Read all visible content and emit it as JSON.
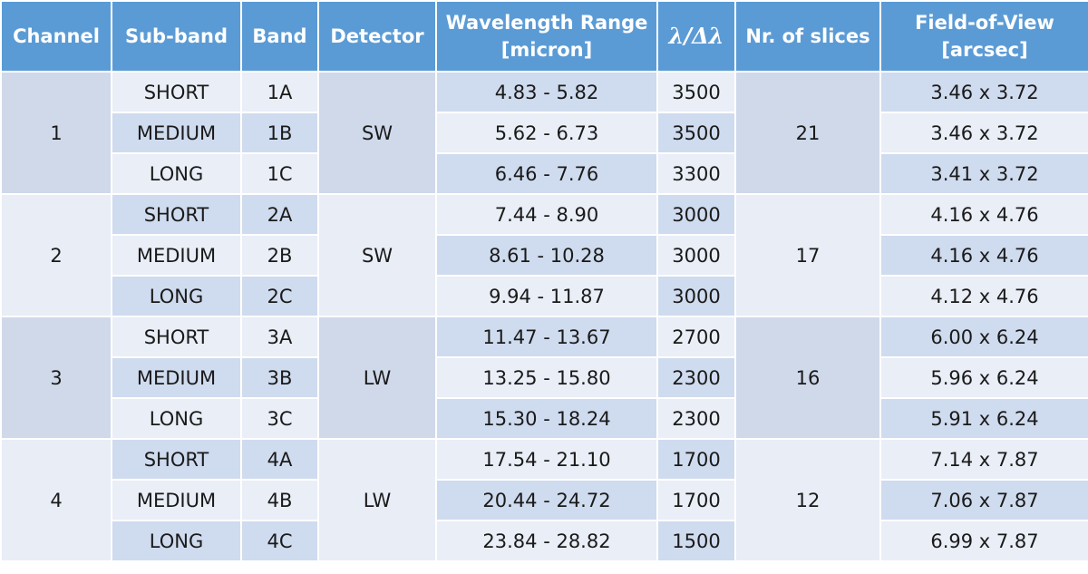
{
  "table": {
    "header": {
      "channel": "Channel",
      "sub_band": "Sub-band",
      "band": "Band",
      "detector": "Detector",
      "wavelength": [
        "Wavelength Range",
        "[micron]"
      ],
      "resolution": "λ/Δλ",
      "slices": "Nr. of slices",
      "fov": [
        "Field-of-View",
        "[arcsec]"
      ]
    },
    "groups": [
      {
        "channel": "1",
        "detector": "SW",
        "slices": "21",
        "rows": [
          {
            "sub_band": "SHORT",
            "band": "1A",
            "wavelength": "4.83 - 5.82",
            "resolution": "3500",
            "fov": "3.46 x 3.72"
          },
          {
            "sub_band": "MEDIUM",
            "band": "1B",
            "wavelength": "5.62 - 6.73",
            "resolution": "3500",
            "fov": "3.46 x 3.72"
          },
          {
            "sub_band": "LONG",
            "band": "1C",
            "wavelength": "6.46 - 7.76",
            "resolution": "3300",
            "fov": "3.41 x 3.72"
          }
        ]
      },
      {
        "channel": "2",
        "detector": "SW",
        "slices": "17",
        "rows": [
          {
            "sub_band": "SHORT",
            "band": "2A",
            "wavelength": "7.44 - 8.90",
            "resolution": "3000",
            "fov": "4.16 x 4.76"
          },
          {
            "sub_band": "MEDIUM",
            "band": "2B",
            "wavelength": "8.61 - 10.28",
            "resolution": "3000",
            "fov": "4.16 x 4.76"
          },
          {
            "sub_band": "LONG",
            "band": "2C",
            "wavelength": "9.94 - 11.87",
            "resolution": "3000",
            "fov": "4.12 x 4.76"
          }
        ]
      },
      {
        "channel": "3",
        "detector": "LW",
        "slices": "16",
        "rows": [
          {
            "sub_band": "SHORT",
            "band": "3A",
            "wavelength": "11.47 - 13.67",
            "resolution": "2700",
            "fov": "6.00 x 6.24"
          },
          {
            "sub_band": "MEDIUM",
            "band": "3B",
            "wavelength": "13.25 - 15.80",
            "resolution": "2300",
            "fov": "5.96 x 6.24"
          },
          {
            "sub_band": "LONG",
            "band": "3C",
            "wavelength": "15.30 - 18.24",
            "resolution": "2300",
            "fov": "5.91 x 6.24"
          }
        ]
      },
      {
        "channel": "4",
        "detector": "LW",
        "slices": "12",
        "rows": [
          {
            "sub_band": "SHORT",
            "band": "4A",
            "wavelength": "17.54 - 21.10",
            "resolution": "1700",
            "fov": "7.14 x 7.87"
          },
          {
            "sub_band": "MEDIUM",
            "band": "4B",
            "wavelength": "20.44 - 24.72",
            "resolution": "1700",
            "fov": "7.06 x 7.87"
          },
          {
            "sub_band": "LONG",
            "band": "4C",
            "wavelength": "23.84 - 28.82",
            "resolution": "1500",
            "fov": "6.99 x 7.87"
          }
        ]
      }
    ]
  }
}
